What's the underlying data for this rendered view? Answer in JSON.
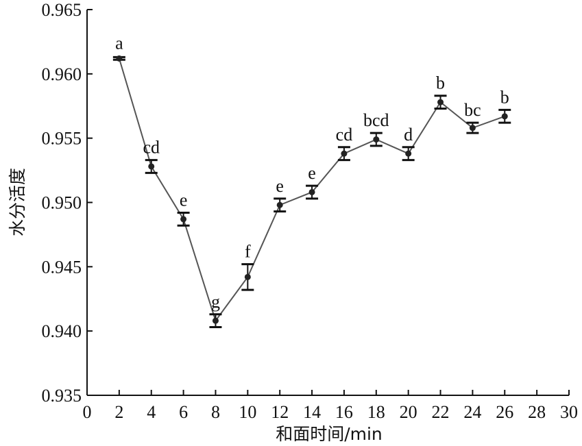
{
  "chart_data": {
    "type": "line",
    "x_label": "和面时间/min",
    "y_label": "水分活度",
    "x": [
      2,
      4,
      6,
      8,
      10,
      12,
      14,
      16,
      18,
      20,
      22,
      24,
      26
    ],
    "values": [
      0.9612,
      0.9528,
      0.9487,
      0.9408,
      0.9442,
      0.9498,
      0.9508,
      0.9538,
      0.9549,
      0.9538,
      0.9578,
      0.9558,
      0.9567
    ],
    "errors": [
      0.0001,
      0.0005,
      0.0005,
      0.0005,
      0.001,
      0.0005,
      0.0005,
      0.0005,
      0.0005,
      0.0005,
      0.0005,
      0.0004,
      0.0005
    ],
    "value_labels": [
      "a",
      "cd",
      "e",
      "g",
      "f",
      "e",
      "e",
      "cd",
      "bcd",
      "d",
      "b",
      "bc",
      "b"
    ],
    "color": "#555555",
    "xlim": [
      0,
      30
    ],
    "xticks": [
      0,
      2,
      4,
      6,
      8,
      10,
      12,
      14,
      16,
      18,
      20,
      22,
      24,
      26,
      28,
      30
    ],
    "ylim": [
      0.935,
      0.965
    ],
    "yticks": [
      0.935,
      {
        "value": 0.94,
        "label": "0.940"
      },
      0.945,
      {
        "value": 0.95,
        "label": "0.950"
      },
      0.955,
      {
        "value": 0.96,
        "label": "0.960"
      },
      0.965
    ]
  }
}
